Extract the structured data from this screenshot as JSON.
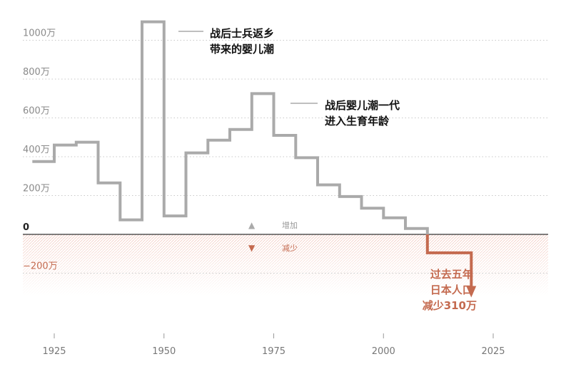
{
  "colors": {
    "increase": "#aaaaaa",
    "decrease": "#c46a4f",
    "grid": "#c8c8c8",
    "zero_line": "#333333",
    "neg_hatch": "#f2c6bb"
  },
  "chart_data": {
    "type": "line",
    "step": true,
    "unit": "万",
    "x_ticks": [
      "1925",
      "1950",
      "1975",
      "2000",
      "2025"
    ],
    "y_ticks": [
      {
        "value": 1000,
        "label": "1000万"
      },
      {
        "value": 800,
        "label": "800万"
      },
      {
        "value": 600,
        "label": "600万"
      },
      {
        "value": 400,
        "label": "400万"
      },
      {
        "value": 200,
        "label": "200万"
      },
      {
        "value": 0,
        "label": "0"
      },
      {
        "value": -200,
        "label": "−200万"
      }
    ],
    "xlim": [
      1921,
      2038
    ],
    "ylim": [
      -350,
      1120
    ],
    "series": [
      {
        "name": "增加",
        "color": "#aaaaaa",
        "points": [
          [
            1920,
            375
          ],
          [
            1925,
            375
          ],
          [
            1925,
            460
          ],
          [
            1930,
            460
          ],
          [
            1930,
            475
          ],
          [
            1935,
            475
          ],
          [
            1935,
            265
          ],
          [
            1940,
            265
          ],
          [
            1940,
            75
          ],
          [
            1945,
            75
          ],
          [
            1945,
            1095
          ],
          [
            1950,
            1095
          ],
          [
            1950,
            95
          ],
          [
            1955,
            95
          ],
          [
            1955,
            420
          ],
          [
            1960,
            420
          ],
          [
            1960,
            485
          ],
          [
            1965,
            485
          ],
          [
            1965,
            540
          ],
          [
            1970,
            540
          ],
          [
            1970,
            725
          ],
          [
            1975,
            725
          ],
          [
            1975,
            510
          ],
          [
            1980,
            510
          ],
          [
            1980,
            395
          ],
          [
            1985,
            395
          ],
          [
            1985,
            255
          ],
          [
            1990,
            255
          ],
          [
            1990,
            195
          ],
          [
            1995,
            195
          ],
          [
            1995,
            135
          ],
          [
            2000,
            135
          ],
          [
            2000,
            85
          ],
          [
            2005,
            85
          ],
          [
            2005,
            30
          ],
          [
            2010,
            30
          ],
          [
            2010,
            0
          ]
        ]
      },
      {
        "name": "减少",
        "color": "#c46a4f",
        "points": [
          [
            2010,
            0
          ],
          [
            2010,
            -95
          ],
          [
            2020,
            -95
          ],
          [
            2020,
            -310
          ]
        ]
      }
    ],
    "legend": [
      {
        "label": "增加",
        "marker": "▲",
        "color": "#aaaaaa"
      },
      {
        "label": "减少",
        "marker": "▼",
        "color": "#c46a4f"
      }
    ],
    "annotations": [
      {
        "lines": [
          "战后士兵返乡",
          "带来的婴儿潮"
        ],
        "color": "#111111"
      },
      {
        "lines": [
          "战后婴儿潮一代",
          "进入生育年龄"
        ],
        "color": "#111111"
      },
      {
        "lines": [
          "过去五年",
          "日本人口",
          "减少310万"
        ],
        "color": "#c46a4f"
      }
    ]
  }
}
